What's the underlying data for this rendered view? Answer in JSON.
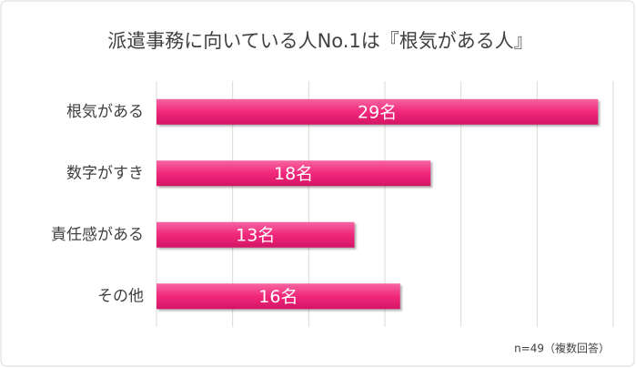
{
  "chart_data": {
    "type": "bar",
    "orientation": "horizontal",
    "title": "派遣事務に向いている人No.1は『根気がある人』",
    "categories": [
      "根気がある",
      "数字がすき",
      "責任感がある",
      "その他"
    ],
    "values": [
      29,
      18,
      13,
      16
    ],
    "value_labels": [
      "29名",
      "18名",
      "13名",
      "16名"
    ],
    "color": "#f0287a",
    "xlim": [
      0,
      30
    ],
    "xticks": [
      0,
      5,
      10,
      15,
      20,
      25,
      30
    ],
    "grid": true,
    "annotation": "n=49（複数回答）"
  }
}
